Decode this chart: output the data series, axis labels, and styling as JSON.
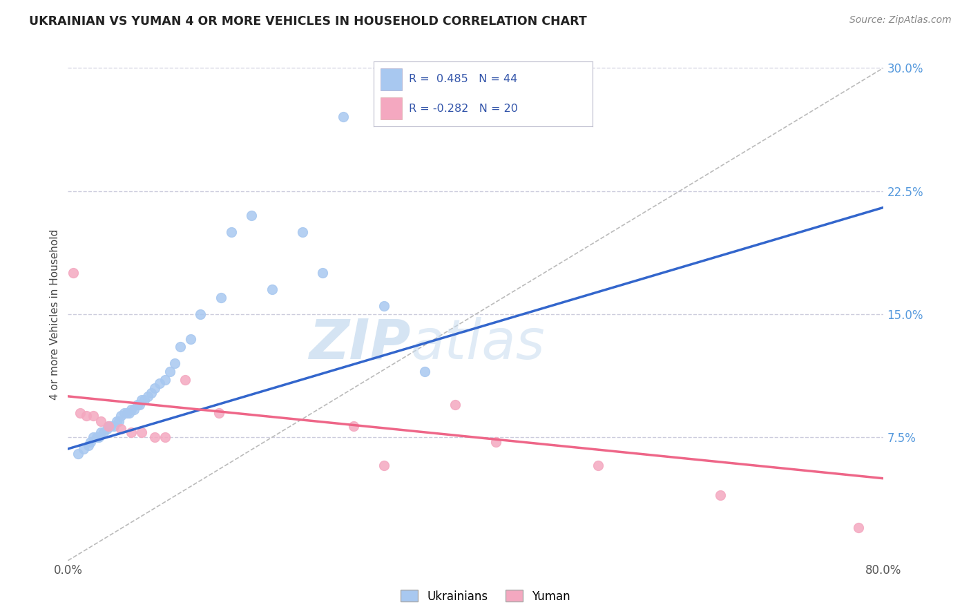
{
  "title": "UKRAINIAN VS YUMAN 4 OR MORE VEHICLES IN HOUSEHOLD CORRELATION CHART",
  "source": "Source: ZipAtlas.com",
  "ylabel": "4 or more Vehicles in Household",
  "xlim": [
    0.0,
    0.8
  ],
  "ylim": [
    0.0,
    0.3
  ],
  "xticks": [
    0.0,
    0.1,
    0.2,
    0.3,
    0.4,
    0.5,
    0.6,
    0.7,
    0.8
  ],
  "xticklabels": [
    "0.0%",
    "",
    "",
    "",
    "",
    "",
    "",
    "",
    "80.0%"
  ],
  "yticks": [
    0.0,
    0.075,
    0.15,
    0.225,
    0.3
  ],
  "yticklabels": [
    "",
    "7.5%",
    "15.0%",
    "22.5%",
    "30.0%"
  ],
  "blue_R": 0.485,
  "blue_N": 44,
  "pink_R": -0.282,
  "pink_N": 20,
  "legend_labels": [
    "Ukrainians",
    "Yuman"
  ],
  "blue_color": "#A8C8F0",
  "pink_color": "#F4A8C0",
  "blue_line_color": "#3366CC",
  "pink_line_color": "#EE6688",
  "gray_dash_color": "#BBBBBB",
  "background_color": "#FFFFFF",
  "grid_color": "#CCCCDD",
  "watermark_zip": "ZIP",
  "watermark_atlas": "atlas",
  "blue_dots_x": [
    0.01,
    0.015,
    0.02,
    0.022,
    0.025,
    0.028,
    0.03,
    0.032,
    0.035,
    0.038,
    0.04,
    0.042,
    0.045,
    0.048,
    0.05,
    0.052,
    0.055,
    0.058,
    0.06,
    0.062,
    0.065,
    0.068,
    0.07,
    0.072,
    0.075,
    0.078,
    0.082,
    0.085,
    0.09,
    0.095,
    0.1,
    0.105,
    0.11,
    0.12,
    0.13,
    0.15,
    0.16,
    0.18,
    0.2,
    0.23,
    0.25,
    0.27,
    0.31,
    0.35
  ],
  "blue_dots_y": [
    0.065,
    0.068,
    0.07,
    0.072,
    0.075,
    0.075,
    0.075,
    0.078,
    0.078,
    0.08,
    0.082,
    0.082,
    0.082,
    0.085,
    0.085,
    0.088,
    0.09,
    0.09,
    0.09,
    0.092,
    0.092,
    0.095,
    0.095,
    0.098,
    0.098,
    0.1,
    0.102,
    0.105,
    0.108,
    0.11,
    0.115,
    0.12,
    0.13,
    0.135,
    0.15,
    0.16,
    0.2,
    0.21,
    0.165,
    0.2,
    0.175,
    0.27,
    0.155,
    0.115
  ],
  "pink_dots_x": [
    0.005,
    0.012,
    0.018,
    0.025,
    0.032,
    0.04,
    0.052,
    0.062,
    0.072,
    0.085,
    0.095,
    0.115,
    0.148,
    0.28,
    0.31,
    0.38,
    0.42,
    0.52,
    0.64,
    0.775
  ],
  "pink_dots_y": [
    0.175,
    0.09,
    0.088,
    0.088,
    0.085,
    0.082,
    0.08,
    0.078,
    0.078,
    0.075,
    0.075,
    0.11,
    0.09,
    0.082,
    0.058,
    0.095,
    0.072,
    0.058,
    0.04,
    0.02
  ]
}
